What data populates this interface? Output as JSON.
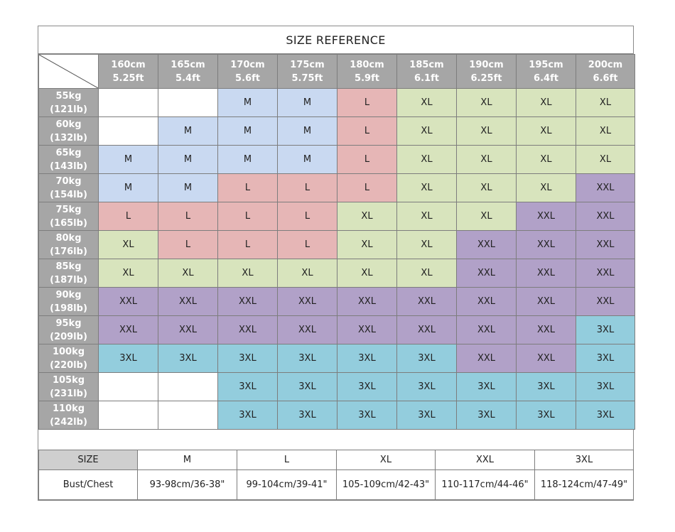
{
  "title": "SIZE REFERENCE",
  "heights": [
    {
      "cm": "160cm",
      "ft": "5.25ft"
    },
    {
      "cm": "165cm",
      "ft": "5.4ft"
    },
    {
      "cm": "170cm",
      "ft": "5.6ft"
    },
    {
      "cm": "175cm",
      "ft": "5.75ft"
    },
    {
      "cm": "180cm",
      "ft": "5.9ft"
    },
    {
      "cm": "185cm",
      "ft": "6.1ft"
    },
    {
      "cm": "190cm",
      "ft": "6.25ft"
    },
    {
      "cm": "195cm",
      "ft": "6.4ft"
    },
    {
      "cm": "200cm",
      "ft": "6.6ft"
    }
  ],
  "rows": [
    {
      "kg": "55kg",
      "lb": "(121lb)",
      "sizes": [
        "",
        "",
        "M",
        "M",
        "L",
        "XL",
        "XL",
        "XL",
        "XL"
      ]
    },
    {
      "kg": "60kg",
      "lb": "(132lb)",
      "sizes": [
        "",
        "M",
        "M",
        "M",
        "L",
        "XL",
        "XL",
        "XL",
        "XL"
      ]
    },
    {
      "kg": "65kg",
      "lb": "(143lb)",
      "sizes": [
        "M",
        "M",
        "M",
        "M",
        "L",
        "XL",
        "XL",
        "XL",
        "XL"
      ]
    },
    {
      "kg": "70kg",
      "lb": "(154lb)",
      "sizes": [
        "M",
        "M",
        "L",
        "L",
        "L",
        "XL",
        "XL",
        "XL",
        "XXL"
      ]
    },
    {
      "kg": "75kg",
      "lb": "(165lb)",
      "sizes": [
        "L",
        "L",
        "L",
        "L",
        "XL",
        "XL",
        "XL",
        "XXL",
        "XXL"
      ]
    },
    {
      "kg": "80kg",
      "lb": "(176lb)",
      "sizes": [
        "XL",
        "L",
        "L",
        "L",
        "XL",
        "XL",
        "XXL",
        "XXL",
        "XXL"
      ]
    },
    {
      "kg": "85kg",
      "lb": "(187lb)",
      "sizes": [
        "XL",
        "XL",
        "XL",
        "XL",
        "XL",
        "XL",
        "XXL",
        "XXL",
        "XXL"
      ]
    },
    {
      "kg": "90kg",
      "lb": "(198lb)",
      "sizes": [
        "XXL",
        "XXL",
        "XXL",
        "XXL",
        "XXL",
        "XXL",
        "XXL",
        "XXL",
        "XXL"
      ]
    },
    {
      "kg": "95kg",
      "lb": "(209lb)",
      "sizes": [
        "XXL",
        "XXL",
        "XXL",
        "XXL",
        "XXL",
        "XXL",
        "XXL",
        "XXL",
        "3XL"
      ]
    },
    {
      "kg": "100kg",
      "lb": "(220lb)",
      "sizes": [
        "3XL",
        "3XL",
        "3XL",
        "3XL",
        "3XL",
        "3XL",
        "XXL",
        "XXL",
        "3XL"
      ]
    },
    {
      "kg": "105kg",
      "lb": "(231lb)",
      "sizes": [
        "",
        "",
        "3XL",
        "3XL",
        "3XL",
        "3XL",
        "3XL",
        "3XL",
        "3XL"
      ]
    },
    {
      "kg": "110kg",
      "lb": "(242lb)",
      "sizes": [
        "",
        "",
        "3XL",
        "3XL",
        "3XL",
        "3XL",
        "3XL",
        "3XL",
        "3XL"
      ]
    }
  ],
  "size_colors": {
    "M": "#c9d9f1",
    "L": "#e6b6b6",
    "XL": "#d8e4bd",
    "XXL": "#b1a1c8",
    "3XL": "#93cddd"
  },
  "legend": {
    "size_label": "SIZE",
    "measure_label": "Bust/Chest",
    "sizes": [
      "M",
      "L",
      "XL",
      "XXL",
      "3XL"
    ],
    "values": [
      "93-98cm/36-38\"",
      "99-104cm/39-41\"",
      "105-109cm/42-43\"",
      "110-117cm/44-46\"",
      "118-124cm/47-49\""
    ]
  }
}
